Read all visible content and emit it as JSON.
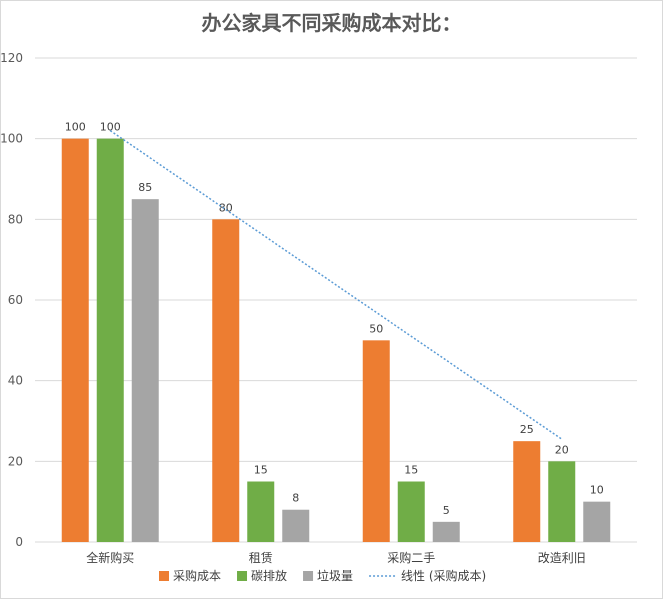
{
  "chart_data": {
    "type": "bar",
    "title": "办公家具不同采购成本对比：",
    "categories": [
      "全新购买",
      "租赁",
      "采购二手",
      "改造利旧"
    ],
    "series": [
      {
        "name": "采购成本",
        "values": [
          100,
          80,
          50,
          25
        ],
        "color": "#ED7D31"
      },
      {
        "name": "碳排放",
        "values": [
          100,
          15,
          15,
          20
        ],
        "color": "#70AD47"
      },
      {
        "name": "垃圾量",
        "values": [
          85,
          8,
          5,
          10
        ],
        "color": "#A5A5A5"
      }
    ],
    "trendline": {
      "name": "线性 (采购成本)",
      "type": "linear",
      "of_series": "采购成本",
      "style": "dotted",
      "color": "#5B9BD5"
    },
    "ylim": [
      0,
      120
    ],
    "yticks": [
      0,
      20,
      40,
      60,
      80,
      100,
      120
    ],
    "grid": true,
    "legend": "bottom",
    "xlabel": "",
    "ylabel": ""
  }
}
